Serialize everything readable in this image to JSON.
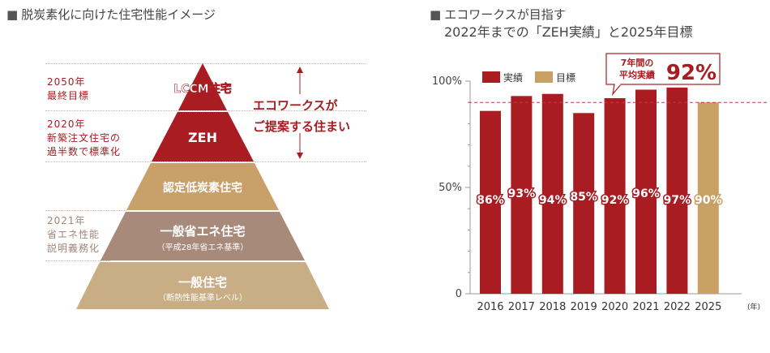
{
  "left_panel": {
    "heading": "脱炭素化に向けた住宅性能イメージ",
    "bullet_icon": "square-bullet-icon",
    "side_labels": [
      {
        "year": "2050年",
        "text": "最終目標"
      },
      {
        "year": "2020年",
        "text_1": "新築注文住宅の",
        "text_2": "過半数で標準化"
      },
      {
        "year": "2021年",
        "text_1": "省エネ性能",
        "text_2": "説明義務化"
      }
    ],
    "tiers": [
      {
        "label": "LCCM住宅",
        "color": "#a81c22"
      },
      {
        "label": "ZEH",
        "color": "#a81c22"
      },
      {
        "label": "認定低炭素住宅",
        "color": "#c9a06a"
      },
      {
        "label": "一般省エネ住宅",
        "sub": "（平成28年省エネ基準）",
        "color": "#a88a7a"
      },
      {
        "label": "一般住宅",
        "sub": "（断熱性能基準レベル）",
        "color": "#c9ad84"
      }
    ],
    "proposal_line1": "エコワークスが",
    "proposal_line2": "ご提案する住まい"
  },
  "right_panel": {
    "heading_line1": "エコワークスが目指す",
    "heading_line2": "2022年までの「ZEH実績」と2025年目標",
    "callout_line1": "7年間の",
    "callout_line2": "平均実績",
    "callout_value": "92%"
  },
  "chart_data": {
    "type": "bar",
    "title": "",
    "categories": [
      "2016",
      "2017",
      "2018",
      "2019",
      "2020",
      "2021",
      "2022",
      "2025"
    ],
    "x_unit": "(年)",
    "series": [
      {
        "name": "実績",
        "color": "#a81c22",
        "values": [
          86,
          93,
          94,
          85,
          92,
          96,
          97,
          null
        ]
      },
      {
        "name": "目標",
        "color": "#c9a063",
        "values": [
          null,
          null,
          null,
          null,
          null,
          null,
          null,
          90
        ]
      }
    ],
    "value_labels": [
      "86%",
      "93%",
      "94%",
      "85%",
      "92%",
      "96%",
      "97%",
      "90%"
    ],
    "y_ticks": [
      {
        "value": 0,
        "label": "0"
      },
      {
        "value": 50,
        "label": "50%"
      },
      {
        "value": 100,
        "label": "100%"
      }
    ],
    "ylim": [
      0,
      100
    ],
    "reference_line": 90,
    "legend_position": "top-left",
    "grid": false
  }
}
